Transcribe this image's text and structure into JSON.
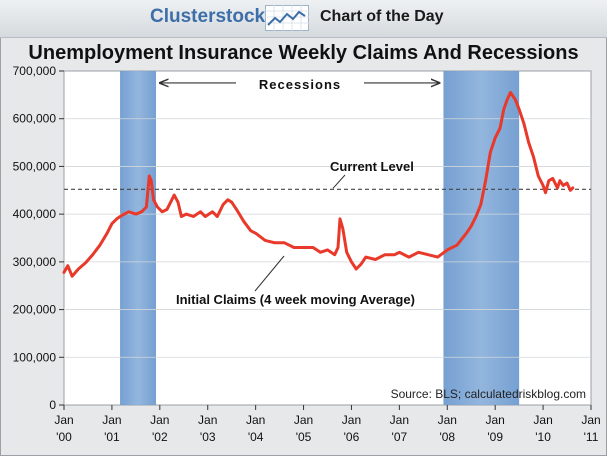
{
  "header": {
    "brand": "Clusterstock",
    "section": "Chart of the Day"
  },
  "chart_data": {
    "type": "line",
    "title": "Unemployment Insurance Weekly Claims And Recessions",
    "xlabel": "",
    "ylabel": "",
    "xlim": [
      2000.0,
      2011.0
    ],
    "ylim": [
      0,
      700000
    ],
    "y_ticks": [
      0,
      100000,
      200000,
      300000,
      400000,
      500000,
      600000,
      700000
    ],
    "y_tick_labels": [
      "0",
      "100,000",
      "200,000",
      "300,000",
      "400,000",
      "500,000",
      "600,000",
      "700,000"
    ],
    "x_ticks": [
      2000,
      2001,
      2002,
      2003,
      2004,
      2005,
      2006,
      2007,
      2008,
      2009,
      2010,
      2011
    ],
    "x_tick_month": "Jan",
    "x_tick_years": [
      "'00",
      "'01",
      "'02",
      "'03",
      "'04",
      "'05",
      "'06",
      "'07",
      "'08",
      "'09",
      "'10",
      "'11"
    ],
    "recessions": [
      {
        "start": 2001.17,
        "end": 2001.92
      },
      {
        "start": 2007.92,
        "end": 2009.5
      }
    ],
    "reference_line": {
      "value": 452000,
      "label": "Current Level"
    },
    "series": [
      {
        "name": "Initial Claims (4 week moving Average)",
        "color": "#e8392a",
        "x": [
          2000.0,
          2000.08,
          2000.17,
          2000.3,
          2000.45,
          2000.6,
          2000.75,
          2000.9,
          2001.0,
          2001.1,
          2001.2,
          2001.35,
          2001.5,
          2001.62,
          2001.72,
          2001.78,
          2001.82,
          2001.87,
          2001.95,
          2002.05,
          2002.15,
          2002.3,
          2002.38,
          2002.45,
          2002.55,
          2002.7,
          2002.85,
          2002.95,
          2003.1,
          2003.2,
          2003.32,
          2003.42,
          2003.5,
          2003.6,
          2003.75,
          2003.9,
          2004.0,
          2004.2,
          2004.4,
          2004.6,
          2004.8,
          2005.0,
          2005.2,
          2005.35,
          2005.5,
          2005.65,
          2005.72,
          2005.76,
          2005.82,
          2005.9,
          2006.0,
          2006.1,
          2006.2,
          2006.3,
          2006.5,
          2006.7,
          2006.9,
          2007.0,
          2007.2,
          2007.4,
          2007.6,
          2007.8,
          2008.0,
          2008.2,
          2008.4,
          2008.5,
          2008.6,
          2008.7,
          2008.8,
          2008.9,
          2009.0,
          2009.1,
          2009.18,
          2009.25,
          2009.32,
          2009.42,
          2009.5,
          2009.6,
          2009.7,
          2009.8,
          2009.9,
          2010.0,
          2010.05,
          2010.12,
          2010.2,
          2010.3,
          2010.35,
          2010.42,
          2010.5,
          2010.57,
          2010.62
        ],
        "values": [
          278000,
          292000,
          270000,
          285000,
          298000,
          315000,
          335000,
          360000,
          380000,
          390000,
          397000,
          405000,
          400000,
          405000,
          415000,
          480000,
          470000,
          430000,
          415000,
          405000,
          410000,
          440000,
          425000,
          395000,
          400000,
          395000,
          405000,
          395000,
          405000,
          395000,
          420000,
          430000,
          425000,
          410000,
          385000,
          365000,
          360000,
          345000,
          340000,
          340000,
          330000,
          330000,
          330000,
          320000,
          325000,
          315000,
          330000,
          390000,
          370000,
          320000,
          300000,
          285000,
          295000,
          310000,
          305000,
          315000,
          315000,
          320000,
          310000,
          320000,
          315000,
          310000,
          325000,
          335000,
          360000,
          375000,
          395000,
          420000,
          470000,
          530000,
          560000,
          580000,
          620000,
          640000,
          655000,
          640000,
          620000,
          590000,
          550000,
          520000,
          480000,
          460000,
          445000,
          470000,
          475000,
          455000,
          470000,
          460000,
          465000,
          450000,
          455000
        ]
      }
    ],
    "annotations": {
      "recessions_label": "Recessions",
      "series_label": "Initial Claims (4 week moving Average)",
      "current_level_label": "Current Level",
      "source": "Source: BLS; calculatedriskblog.com"
    }
  }
}
